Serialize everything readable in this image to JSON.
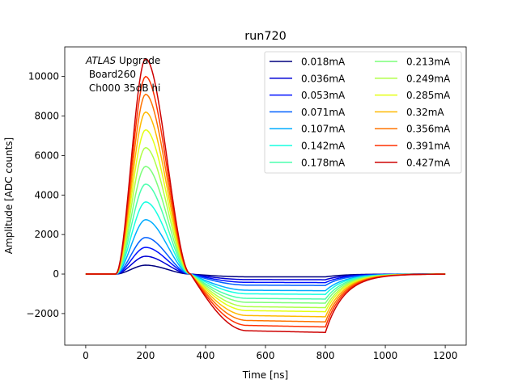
{
  "chart_data": {
    "type": "line",
    "title": "run720",
    "xlabel": "Time [ns]",
    "ylabel": "Amplitude [ADC counts]",
    "xlim": [
      -70,
      1270
    ],
    "ylim": [
      -3600,
      11500
    ],
    "xticks": [
      0,
      200,
      400,
      600,
      800,
      1000,
      1200
    ],
    "yticks": [
      -2000,
      0,
      2000,
      4000,
      6000,
      8000,
      10000
    ],
    "annotation": {
      "atlas": "ATLAS",
      "upgrade": " Upgrade",
      "line2": " Board260",
      "line3": " Ch000 35dB hi"
    },
    "legend_position": "top-right",
    "legend_columns": 2,
    "grid": false,
    "series": [
      {
        "name": "0.018mA",
        "color": "#00007f",
        "peak": 450,
        "undershoot": -140
      },
      {
        "name": "0.036mA",
        "color": "#0000d5",
        "peak": 900,
        "undershoot": -280
      },
      {
        "name": "0.053mA",
        "color": "#0010ff",
        "peak": 1350,
        "undershoot": -420
      },
      {
        "name": "0.071mA",
        "color": "#0060ff",
        "peak": 1850,
        "undershoot": -560
      },
      {
        "name": "0.107mA",
        "color": "#00acff",
        "peak": 2750,
        "undershoot": -820
      },
      {
        "name": "0.142mA",
        "color": "#16ffe1",
        "peak": 3650,
        "undershoot": -1000
      },
      {
        "name": "0.178mA",
        "color": "#49ffad",
        "peak": 4550,
        "undershoot": -1230
      },
      {
        "name": "0.213mA",
        "color": "#7cff79",
        "peak": 5450,
        "undershoot": -1430
      },
      {
        "name": "0.249mA",
        "color": "#b0ff46",
        "peak": 6400,
        "undershoot": -1650
      },
      {
        "name": "0.285mA",
        "color": "#e4ff13",
        "peak": 7300,
        "undershoot": -1850
      },
      {
        "name": "0.32mA",
        "color": "#ffb900",
        "peak": 8200,
        "undershoot": -2100
      },
      {
        "name": "0.356mA",
        "color": "#ff7300",
        "peak": 9100,
        "undershoot": -2350
      },
      {
        "name": "0.391mA",
        "color": "#ff3000",
        "peak": 10000,
        "undershoot": -2600
      },
      {
        "name": "0.427mA",
        "color": "#cd0000",
        "peak": 10900,
        "undershoot": -2870
      }
    ]
  }
}
